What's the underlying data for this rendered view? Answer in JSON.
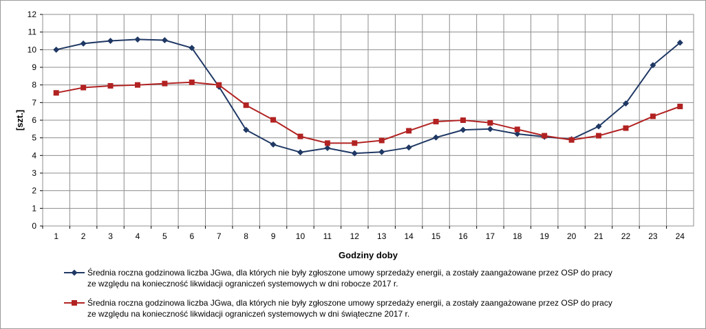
{
  "chart_data": {
    "type": "line",
    "title": "",
    "xlabel": "Godziny doby",
    "ylabel": "[szt.]",
    "ylim": [
      0,
      12
    ],
    "yticks": [
      0,
      1,
      2,
      3,
      4,
      5,
      6,
      7,
      8,
      9,
      10,
      11,
      12
    ],
    "grid": true,
    "legend_position": "bottom",
    "x": [
      1,
      2,
      3,
      4,
      5,
      6,
      7,
      8,
      9,
      10,
      11,
      12,
      13,
      14,
      15,
      16,
      17,
      18,
      19,
      20,
      21,
      22,
      23,
      24
    ],
    "series": [
      {
        "name": "Średnia roczna godzinowa liczba JGwa, dla których nie były zgłoszone umowy sprzedaży energii, a zostały zaangażowane przez OSP do pracy ze względu na konieczność likwidacji ograniczeń systemowych w dni robocze 2017 r.",
        "color": "#1f3864",
        "marker": "diamond",
        "values": [
          10.0,
          10.35,
          10.5,
          10.58,
          10.54,
          10.1,
          7.9,
          5.45,
          4.62,
          4.18,
          4.42,
          4.12,
          4.2,
          4.45,
          5.02,
          5.45,
          5.5,
          5.22,
          5.06,
          4.92,
          5.65,
          6.95,
          9.12,
          10.4
        ]
      },
      {
        "name": "Średnia roczna godzinowa liczba JGwa, dla których nie były zgłoszone umowy sprzedaży energii, a zostały zaangażowane przez OSP do pracy ze względu na konieczność likwidacji ograniczeń systemowych w dni świąteczne 2017 r.",
        "color": "#b22222",
        "marker": "square",
        "values": [
          7.55,
          7.85,
          7.95,
          8.0,
          8.08,
          8.15,
          8.0,
          6.85,
          6.02,
          5.08,
          4.7,
          4.7,
          4.85,
          5.4,
          5.92,
          6.0,
          5.85,
          5.48,
          5.12,
          4.88,
          5.12,
          5.55,
          6.22,
          6.78
        ]
      }
    ]
  },
  "legend": {
    "items": [
      {
        "line1": "Średnia roczna godzinowa liczba JGwa, dla których nie były zgłoszone umowy sprzedaży energii, a zostały zaangażowane przez OSP do pracy",
        "line2": "ze względu na konieczność likwidacji ograniczeń systemowych w dni robocze 2017 r."
      },
      {
        "line1": "Średnia roczna godzinowa liczba JGwa, dla których nie były zgłoszone umowy sprzedaży energii, a zostały zaangażowane przez OSP do pracy",
        "line2": "ze względu na konieczność likwidacji ograniczeń systemowych w dni świąteczne 2017 r."
      }
    ]
  }
}
